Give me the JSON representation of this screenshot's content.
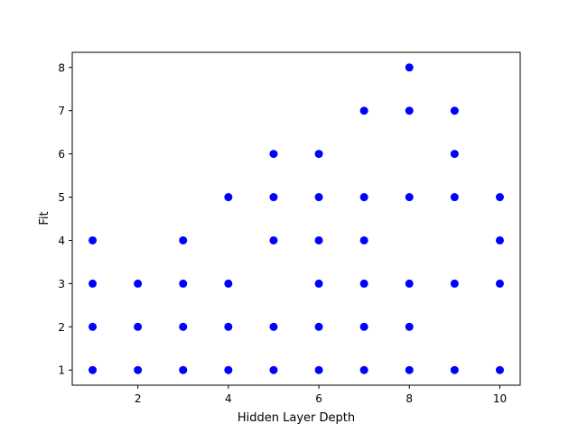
{
  "chart_data": {
    "type": "scatter",
    "xlabel": "Hidden Layer Depth",
    "ylabel": "Fit",
    "xlim": [
      0.55,
      10.45
    ],
    "ylim": [
      0.65,
      8.35
    ],
    "xticks": [
      2,
      4,
      6,
      8,
      10
    ],
    "yticks": [
      1,
      2,
      3,
      4,
      5,
      6,
      7,
      8
    ],
    "grid": false,
    "marker_color": "#0000ff",
    "points": [
      {
        "x": 1,
        "y": 4
      },
      {
        "x": 1,
        "y": 3
      },
      {
        "x": 1,
        "y": 2
      },
      {
        "x": 1,
        "y": 1
      },
      {
        "x": 2,
        "y": 3
      },
      {
        "x": 2,
        "y": 2
      },
      {
        "x": 2,
        "y": 1
      },
      {
        "x": 3,
        "y": 4
      },
      {
        "x": 3,
        "y": 3
      },
      {
        "x": 3,
        "y": 2
      },
      {
        "x": 3,
        "y": 1
      },
      {
        "x": 4,
        "y": 5
      },
      {
        "x": 4,
        "y": 3
      },
      {
        "x": 4,
        "y": 2
      },
      {
        "x": 4,
        "y": 1
      },
      {
        "x": 5,
        "y": 6
      },
      {
        "x": 5,
        "y": 5
      },
      {
        "x": 5,
        "y": 4
      },
      {
        "x": 5,
        "y": 2
      },
      {
        "x": 5,
        "y": 1
      },
      {
        "x": 6,
        "y": 6
      },
      {
        "x": 6,
        "y": 5
      },
      {
        "x": 6,
        "y": 4
      },
      {
        "x": 6,
        "y": 3
      },
      {
        "x": 6,
        "y": 2
      },
      {
        "x": 6,
        "y": 1
      },
      {
        "x": 7,
        "y": 7
      },
      {
        "x": 7,
        "y": 5
      },
      {
        "x": 7,
        "y": 4
      },
      {
        "x": 7,
        "y": 3
      },
      {
        "x": 7,
        "y": 2
      },
      {
        "x": 7,
        "y": 1
      },
      {
        "x": 8,
        "y": 8
      },
      {
        "x": 8,
        "y": 7
      },
      {
        "x": 8,
        "y": 5
      },
      {
        "x": 8,
        "y": 3
      },
      {
        "x": 8,
        "y": 2
      },
      {
        "x": 8,
        "y": 1
      },
      {
        "x": 9,
        "y": 7
      },
      {
        "x": 9,
        "y": 6
      },
      {
        "x": 9,
        "y": 5
      },
      {
        "x": 9,
        "y": 3
      },
      {
        "x": 9,
        "y": 1
      },
      {
        "x": 10,
        "y": 5
      },
      {
        "x": 10,
        "y": 4
      },
      {
        "x": 10,
        "y": 3
      },
      {
        "x": 10,
        "y": 1
      }
    ]
  }
}
